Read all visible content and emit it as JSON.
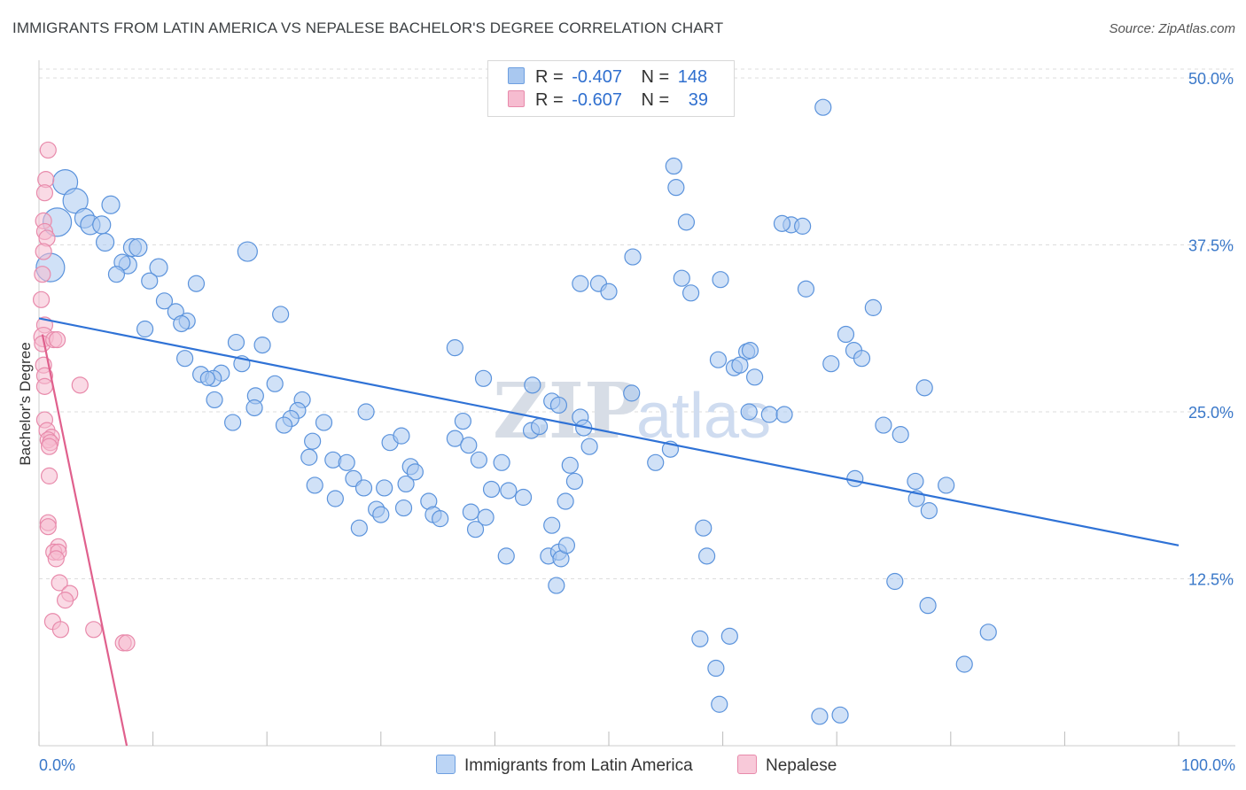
{
  "title": "IMMIGRANTS FROM LATIN AMERICA VS NEPALESE BACHELOR'S DEGREE CORRELATION CHART",
  "source": "Source: ZipAtlas.com",
  "watermark": {
    "zip": "ZIP",
    "atlas": "atlas"
  },
  "legend": {
    "rows": [
      {
        "r_label": "R =",
        "r_value": "-0.407",
        "n_label": "N =",
        "n_value": "148",
        "color": "#a9c8f0",
        "border": "#6d9fe0"
      },
      {
        "r_label": "R =",
        "r_value": "-0.607",
        "n_label": "N =",
        "n_value": "39",
        "color": "#f6bcd0",
        "border": "#e88aab"
      }
    ]
  },
  "bottom_legend": [
    {
      "label": "Immigrants from Latin America",
      "color": "#a9c8f0",
      "border": "#6d9fe0"
    },
    {
      "label": "Nepalese",
      "color": "#f6bcd0",
      "border": "#e88aab"
    }
  ],
  "chart_data": {
    "type": "scatter",
    "title": "IMMIGRANTS FROM LATIN AMERICA VS NEPALESE BACHELOR'S DEGREE CORRELATION CHART",
    "xlabel": "",
    "ylabel": "Bachelor's Degree",
    "xlim": [
      0,
      100
    ],
    "ylim": [
      0,
      50
    ],
    "x_tick_labels": [
      "0.0%",
      "100.0%"
    ],
    "y_ticks": [
      12.5,
      25.0,
      37.5,
      50.0
    ],
    "y_tick_labels": [
      "12.5%",
      "25.0%",
      "37.5%",
      "50.0%"
    ],
    "grid": true,
    "legend_position": "top-center",
    "series": [
      {
        "name": "Immigrants from Latin America",
        "color": "#a9c8f0",
        "stroke": "#5b93dc",
        "trend": {
          "x": [
            0,
            100
          ],
          "y": [
            32.0,
            15.0
          ],
          "color": "#2f72d6"
        },
        "points": [
          [
            2.3,
            42.2,
            14
          ],
          [
            3.2,
            40.8,
            14
          ],
          [
            1.6,
            39.2,
            16
          ],
          [
            4.0,
            39.5,
            11
          ],
          [
            4.5,
            39.0,
            11
          ],
          [
            5.5,
            39.0,
            10
          ],
          [
            6.3,
            40.5,
            10
          ],
          [
            1.0,
            35.8,
            16
          ],
          [
            5.8,
            37.7,
            10
          ],
          [
            8.2,
            37.3,
            10
          ],
          [
            8.7,
            37.3,
            10
          ],
          [
            7.8,
            36.0,
            10
          ],
          [
            7.3,
            36.2,
            9
          ],
          [
            10.5,
            35.8,
            10
          ],
          [
            6.8,
            35.3,
            9
          ],
          [
            9.7,
            34.8,
            9
          ],
          [
            13.8,
            34.6,
            9
          ],
          [
            18.3,
            37.0,
            11
          ],
          [
            11.0,
            33.3,
            9
          ],
          [
            12.0,
            32.5,
            9
          ],
          [
            13.0,
            31.8,
            9
          ],
          [
            12.5,
            31.6,
            9
          ],
          [
            9.3,
            31.2,
            9
          ],
          [
            21.2,
            32.3,
            9
          ],
          [
            17.3,
            30.2,
            9
          ],
          [
            19.6,
            30.0,
            9
          ],
          [
            12.8,
            29.0,
            9
          ],
          [
            14.2,
            27.8,
            9
          ],
          [
            16.0,
            27.9,
            9
          ],
          [
            15.3,
            27.5,
            9
          ],
          [
            17.8,
            28.6,
            9
          ],
          [
            14.8,
            27.5,
            8
          ],
          [
            19.0,
            26.2,
            9
          ],
          [
            20.7,
            27.1,
            9
          ],
          [
            15.4,
            25.9,
            9
          ],
          [
            18.9,
            25.3,
            9
          ],
          [
            23.1,
            25.9,
            9
          ],
          [
            22.7,
            25.1,
            9
          ],
          [
            22.1,
            24.5,
            9
          ],
          [
            21.5,
            24.0,
            9
          ],
          [
            17.0,
            24.2,
            9
          ],
          [
            25.0,
            24.2,
            9
          ],
          [
            24.0,
            22.8,
            9
          ],
          [
            23.7,
            21.6,
            9
          ],
          [
            25.8,
            21.4,
            9
          ],
          [
            27.0,
            21.2,
            9
          ],
          [
            28.7,
            25.0,
            9
          ],
          [
            30.8,
            22.7,
            9
          ],
          [
            31.8,
            23.2,
            9
          ],
          [
            24.2,
            19.5,
            9
          ],
          [
            26.0,
            18.5,
            9
          ],
          [
            27.6,
            20.0,
            9
          ],
          [
            28.5,
            19.3,
            9
          ],
          [
            32.6,
            20.9,
            9
          ],
          [
            33.0,
            20.5,
            9
          ],
          [
            32.2,
            19.6,
            9
          ],
          [
            30.3,
            19.3,
            9
          ],
          [
            29.6,
            17.7,
            9
          ],
          [
            30.0,
            17.3,
            9
          ],
          [
            32.0,
            17.8,
            9
          ],
          [
            34.2,
            18.3,
            9
          ],
          [
            34.6,
            17.3,
            9
          ],
          [
            35.2,
            17.0,
            9
          ],
          [
            28.1,
            16.3,
            9
          ],
          [
            36.5,
            23.0,
            9
          ],
          [
            37.2,
            24.3,
            9
          ],
          [
            36.5,
            29.8,
            9
          ],
          [
            37.7,
            22.5,
            9
          ],
          [
            38.6,
            21.4,
            9
          ],
          [
            39.7,
            19.2,
            9
          ],
          [
            40.6,
            21.2,
            9
          ],
          [
            41.2,
            19.1,
            9
          ],
          [
            42.5,
            18.6,
            9
          ],
          [
            37.9,
            17.5,
            9
          ],
          [
            39.2,
            17.1,
            9
          ],
          [
            38.3,
            16.2,
            9
          ],
          [
            41.0,
            14.2,
            9
          ],
          [
            43.2,
            23.6,
            9
          ],
          [
            43.9,
            23.9,
            9
          ],
          [
            43.3,
            27.0,
            9
          ],
          [
            39.0,
            27.5,
            9
          ],
          [
            45.0,
            25.8,
            9
          ],
          [
            45.6,
            25.5,
            9
          ],
          [
            47.5,
            24.6,
            9
          ],
          [
            47.8,
            23.8,
            9
          ],
          [
            48.3,
            22.4,
            9
          ],
          [
            46.6,
            21.0,
            9
          ],
          [
            47.0,
            19.8,
            9
          ],
          [
            46.2,
            18.3,
            9
          ],
          [
            45.0,
            16.5,
            9
          ],
          [
            44.7,
            14.2,
            9
          ],
          [
            45.6,
            14.5,
            9
          ],
          [
            45.8,
            14.0,
            9
          ],
          [
            46.3,
            15.0,
            9
          ],
          [
            45.4,
            12.0,
            9
          ],
          [
            47.5,
            34.6,
            9
          ],
          [
            49.1,
            34.6,
            9
          ],
          [
            50.0,
            34.0,
            9
          ],
          [
            52.1,
            36.6,
            9
          ],
          [
            52.0,
            26.4,
            9
          ],
          [
            54.1,
            21.2,
            9
          ],
          [
            56.4,
            35.0,
            9
          ],
          [
            57.2,
            33.9,
            9
          ],
          [
            55.7,
            43.4,
            9
          ],
          [
            56.8,
            39.2,
            9
          ],
          [
            55.9,
            41.8,
            9
          ],
          [
            59.8,
            34.9,
            9
          ],
          [
            62.1,
            29.5,
            9
          ],
          [
            59.6,
            28.9,
            9
          ],
          [
            61.0,
            28.3,
            9
          ],
          [
            61.5,
            28.5,
            9
          ],
          [
            62.4,
            29.6,
            9
          ],
          [
            62.8,
            27.6,
            9
          ],
          [
            64.1,
            24.8,
            9
          ],
          [
            62.3,
            25.0,
            9
          ],
          [
            66.0,
            39.0,
            9
          ],
          [
            67.0,
            38.9,
            9
          ],
          [
            65.2,
            39.1,
            9
          ],
          [
            68.8,
            47.8,
            9
          ],
          [
            65.4,
            24.8,
            9
          ],
          [
            67.3,
            34.2,
            9
          ],
          [
            69.5,
            28.6,
            9
          ],
          [
            70.8,
            30.8,
            9
          ],
          [
            71.5,
            29.6,
            9
          ],
          [
            72.2,
            29.0,
            9
          ],
          [
            73.2,
            32.8,
            9
          ],
          [
            74.1,
            24.0,
            9
          ],
          [
            75.6,
            23.3,
            9
          ],
          [
            71.6,
            20.0,
            9
          ],
          [
            76.9,
            19.8,
            9
          ],
          [
            77.7,
            26.8,
            9
          ],
          [
            77.0,
            18.5,
            9
          ],
          [
            78.1,
            17.6,
            9
          ],
          [
            79.6,
            19.5,
            9
          ],
          [
            55.4,
            22.2,
            9
          ],
          [
            58.3,
            16.3,
            9
          ],
          [
            58.6,
            14.2,
            9
          ],
          [
            60.6,
            8.2,
            9
          ],
          [
            58.0,
            8.0,
            9
          ],
          [
            59.4,
            5.8,
            9
          ],
          [
            59.7,
            3.1,
            9
          ],
          [
            68.5,
            2.2,
            9
          ],
          [
            70.3,
            2.3,
            9
          ],
          [
            75.1,
            12.3,
            9
          ],
          [
            78.0,
            10.5,
            9
          ],
          [
            81.2,
            6.1,
            9
          ],
          [
            83.3,
            8.5,
            9
          ]
        ]
      },
      {
        "name": "Nepalese",
        "color": "#f6bcd0",
        "stroke": "#e88aab",
        "trend": {
          "x": [
            0.3,
            7.7
          ],
          "y": [
            30.8,
            0.0
          ],
          "color": "#e0608d"
        },
        "points": [
          [
            0.8,
            44.6,
            9
          ],
          [
            0.6,
            42.4,
            9
          ],
          [
            0.5,
            41.4,
            9
          ],
          [
            0.4,
            39.3,
            9
          ],
          [
            0.5,
            38.5,
            9
          ],
          [
            0.7,
            38.0,
            9
          ],
          [
            0.4,
            37.0,
            9
          ],
          [
            0.3,
            35.3,
            9
          ],
          [
            0.2,
            33.4,
            9
          ],
          [
            0.5,
            31.5,
            9
          ],
          [
            0.4,
            30.6,
            11
          ],
          [
            0.3,
            30.1,
            9
          ],
          [
            1.3,
            30.4,
            9
          ],
          [
            1.6,
            30.4,
            9
          ],
          [
            0.4,
            28.5,
            9
          ],
          [
            0.5,
            27.7,
            9
          ],
          [
            0.5,
            26.9,
            9
          ],
          [
            3.6,
            27.0,
            9
          ],
          [
            0.5,
            24.4,
            9
          ],
          [
            0.7,
            23.6,
            9
          ],
          [
            1.1,
            23.1,
            9
          ],
          [
            0.8,
            22.9,
            9
          ],
          [
            1.0,
            22.7,
            9
          ],
          [
            0.9,
            22.4,
            9
          ],
          [
            0.9,
            20.2,
            9
          ],
          [
            0.8,
            16.7,
            9
          ],
          [
            0.8,
            16.4,
            9
          ],
          [
            1.7,
            14.9,
            9
          ],
          [
            1.3,
            14.5,
            9
          ],
          [
            1.7,
            14.5,
            9
          ],
          [
            1.5,
            14.0,
            9
          ],
          [
            1.8,
            12.2,
            9
          ],
          [
            2.7,
            11.4,
            9
          ],
          [
            2.3,
            10.9,
            9
          ],
          [
            1.2,
            9.3,
            9
          ],
          [
            1.9,
            8.7,
            9
          ],
          [
            4.8,
            8.7,
            9
          ],
          [
            7.4,
            7.7,
            9
          ],
          [
            7.7,
            7.7,
            9
          ]
        ]
      }
    ]
  }
}
